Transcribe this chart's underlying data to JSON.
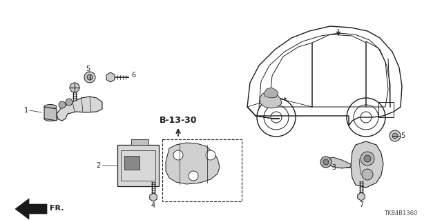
{
  "background_color": "#ffffff",
  "fig_width": 6.4,
  "fig_height": 3.19,
  "dpi": 100,
  "diagram_code": "TK84B1360",
  "arrow_label": "FR.",
  "label_fontsize": 7,
  "bold_label": "B-13-30",
  "bold_fontsize": 9
}
